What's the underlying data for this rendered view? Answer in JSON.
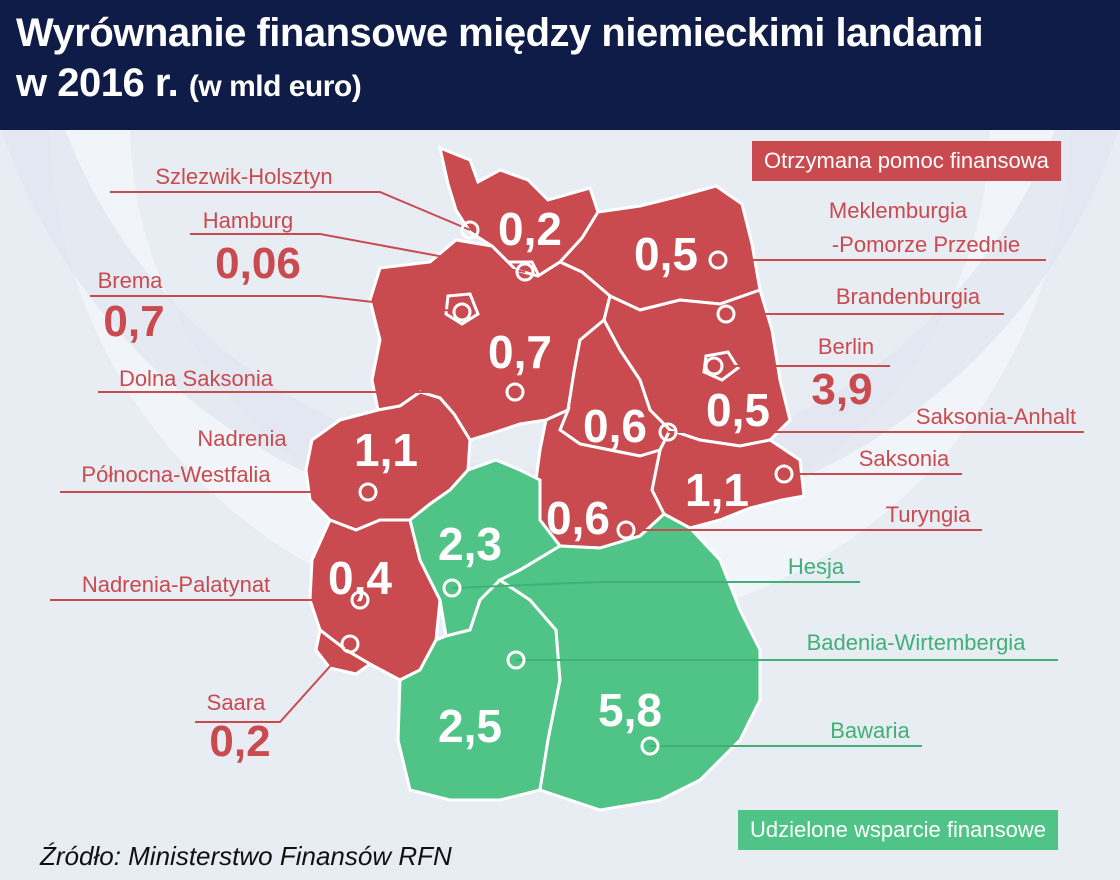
{
  "header": {
    "title_line1": "Wyrównanie finansowe między niemieckimi landami",
    "title_line2_main": "w 2016 r.",
    "title_line2_unit": "(w mld euro)"
  },
  "legend": {
    "received": "Otrzymana pomoc finansowa",
    "given": "Udzielone wsparcie finansowe"
  },
  "source": "Źródło: Ministerstwo Finansów RFN",
  "colors": {
    "received": "#c94a4f",
    "given": "#4fc486",
    "header_bg": "#0f1c47",
    "label_received": "#c94a4f",
    "label_given": "#3fb176"
  },
  "states": [
    {
      "name": "Szlezwik-Holsztyn",
      "value": "0,2",
      "group": "received"
    },
    {
      "name": "Hamburg",
      "value": "0,06",
      "group": "received"
    },
    {
      "name": "Brema",
      "value": "0,7",
      "group": "received"
    },
    {
      "name": "Dolna Saksonia",
      "value": "0,7",
      "group": "received"
    },
    {
      "name": "Nadrenia Północna-Westfalia",
      "value": "1,1",
      "group": "received"
    },
    {
      "name": "Nadrenia-Palatynat",
      "value": "0,4",
      "group": "received"
    },
    {
      "name": "Saara",
      "value": "0,2",
      "group": "received"
    },
    {
      "name": "Meklemburgia -Pomorze Przednie",
      "value": "0,5",
      "group": "received"
    },
    {
      "name": "Brandenburgia",
      "value": "0,5",
      "group": "received"
    },
    {
      "name": "Berlin",
      "value": "3,9",
      "group": "received"
    },
    {
      "name": "Saksonia-Anhalt",
      "value": "0,6",
      "group": "received"
    },
    {
      "name": "Saksonia",
      "value": "1,1",
      "group": "received"
    },
    {
      "name": "Turyngia",
      "value": "0,6",
      "group": "received"
    },
    {
      "name": "Hesja",
      "value": "2,3",
      "group": "given"
    },
    {
      "name": "Badenia-Wirtembergia",
      "value": "2,5",
      "group": "given"
    },
    {
      "name": "Bawaria",
      "value": "5,8",
      "group": "given"
    }
  ],
  "label_lines": {
    "nrw": [
      "Nadrenia",
      "Północna-Westfalia"
    ],
    "mv": [
      "Meklemburgia",
      "-Pomorze Przednie"
    ]
  }
}
